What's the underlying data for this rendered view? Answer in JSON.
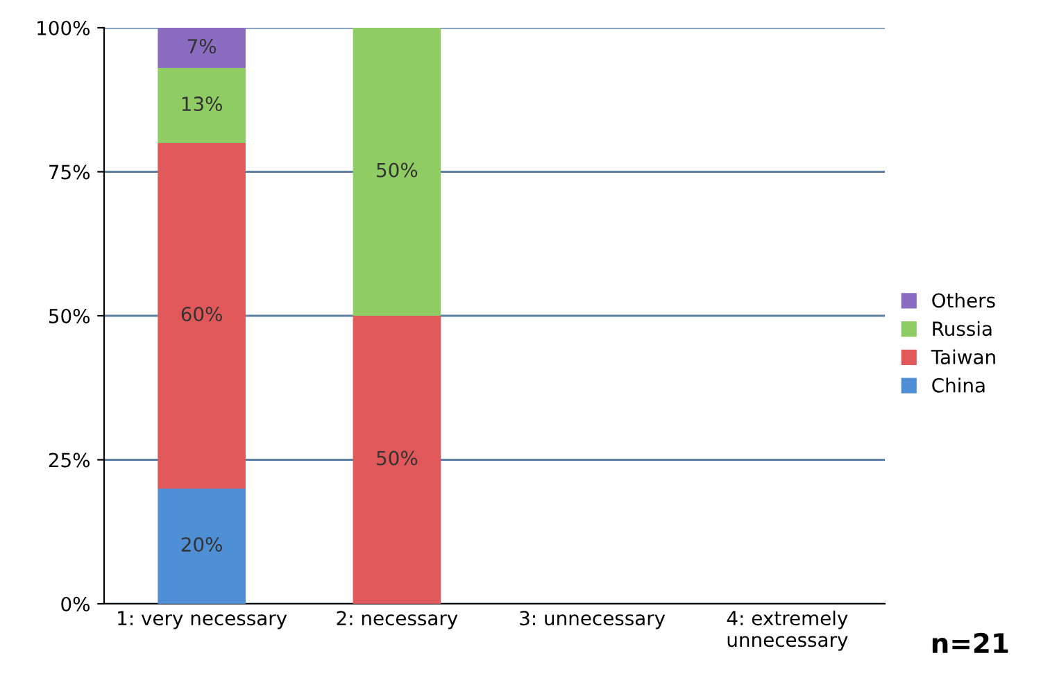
{
  "chart_data": {
    "type": "bar",
    "stacked": true,
    "categories": [
      "1: very necessary",
      "2: necessary",
      "3: unnecessary",
      "4: extremely\nunnecessary"
    ],
    "series": [
      {
        "name": "China",
        "color": "#4f8fd6",
        "values": [
          20,
          0,
          0,
          0
        ],
        "value_labels": [
          "20%",
          null,
          null,
          null
        ]
      },
      {
        "name": "Taiwan",
        "color": "#e0585a",
        "values": [
          60,
          50,
          0,
          0
        ],
        "value_labels": [
          "60%",
          "50%",
          null,
          null
        ]
      },
      {
        "name": "Russia",
        "color": "#8fcc63",
        "values": [
          13,
          50,
          0,
          0
        ],
        "value_labels": [
          "13%",
          "50%",
          null,
          null
        ]
      },
      {
        "name": "Others",
        "color": "#8a6cc0",
        "values": [
          7,
          0,
          0,
          0
        ],
        "value_labels": [
          "7%",
          null,
          null,
          null
        ]
      }
    ],
    "ylim": [
      0,
      100
    ],
    "yticks": [
      {
        "value": 0,
        "label": "0%"
      },
      {
        "value": 25,
        "label": "25%"
      },
      {
        "value": 50,
        "label": "50%"
      },
      {
        "value": 75,
        "label": "75%"
      },
      {
        "value": 100,
        "label": "100%"
      }
    ],
    "grid": "y",
    "legend": "right",
    "annotations": [
      "n=21"
    ]
  }
}
